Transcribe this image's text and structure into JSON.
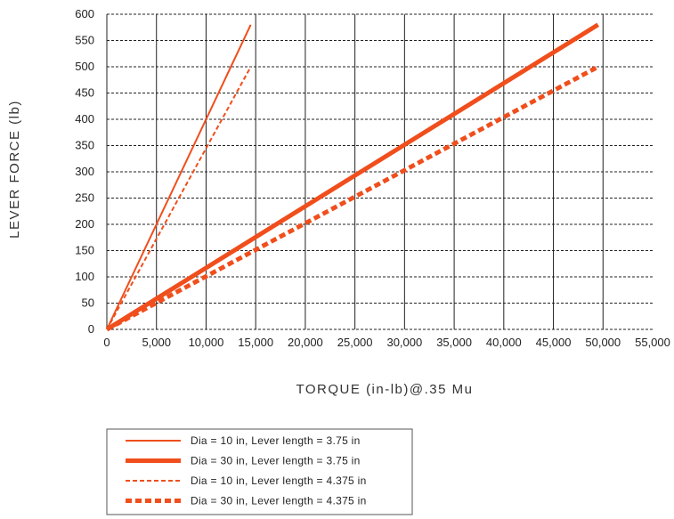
{
  "chart_data": {
    "type": "line",
    "xlabel": "TORQUE (in-lb)@.35 Mu",
    "ylabel": "LEVER FORCE (lb)",
    "xlim": [
      0,
      55000
    ],
    "ylim": [
      0,
      600
    ],
    "x_ticks": [
      0,
      5000,
      10000,
      15000,
      20000,
      25000,
      30000,
      35000,
      40000,
      45000,
      50000,
      55000
    ],
    "x_tick_labels": [
      "0",
      "5,000",
      "10,000",
      "15,000",
      "20,000",
      "25,000",
      "30,000",
      "35,000",
      "40,000",
      "45,000",
      "50,000",
      "55,000"
    ],
    "y_ticks": [
      0,
      50,
      100,
      150,
      200,
      250,
      300,
      350,
      400,
      450,
      500,
      550,
      600
    ],
    "y_tick_labels": [
      "0",
      "50",
      "100",
      "150",
      "200",
      "250",
      "300",
      "350",
      "400",
      "450",
      "500",
      "550",
      "600"
    ],
    "grid": {
      "vertical": "solid",
      "horizontal": "dashed"
    },
    "legend_position": "bottom-left",
    "color": "#f04e1c",
    "series": [
      {
        "name": "Dia = 10 in, Lever length = 3.75 in",
        "style": "solid",
        "weight": "thin",
        "x": [
          0,
          14500
        ],
        "y": [
          0,
          580
        ]
      },
      {
        "name": "Dia = 30 in, Lever length = 3.75 in",
        "style": "solid",
        "weight": "thick",
        "x": [
          0,
          49500
        ],
        "y": [
          0,
          580
        ]
      },
      {
        "name": "Dia = 10 in, Lever length = 4.375 in",
        "style": "dashed",
        "weight": "thin",
        "x": [
          0,
          14500
        ],
        "y": [
          0,
          500
        ]
      },
      {
        "name": "Dia = 30 in, Lever length = 4.375 in",
        "style": "dashed",
        "weight": "thick",
        "x": [
          0,
          49500
        ],
        "y": [
          0,
          500
        ]
      }
    ]
  }
}
